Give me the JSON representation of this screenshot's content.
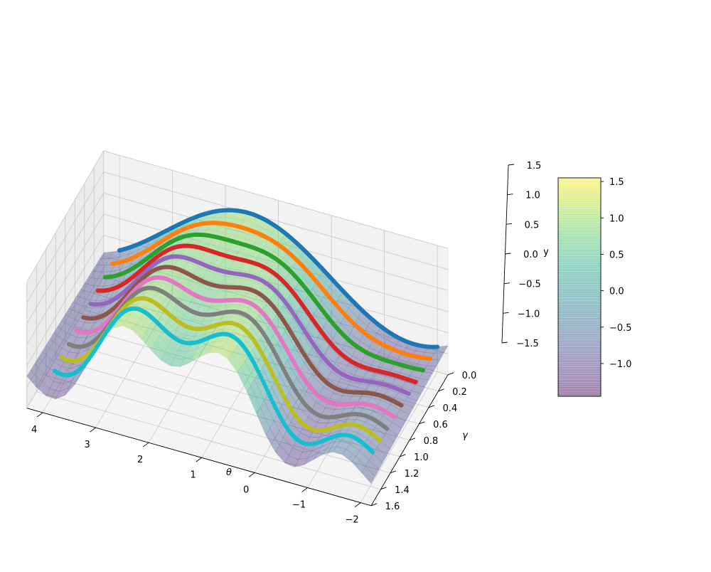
{
  "chart_data": {
    "type": "surface3d",
    "title": "",
    "xlabel": "θ",
    "ylabel": "γ",
    "zlabel": "y",
    "xlim": [
      -2.2,
      4.3
    ],
    "ylim": [
      0.0,
      1.6
    ],
    "zlim": [
      -1.5,
      1.5
    ],
    "x_ticks": [
      "4",
      "3",
      "2",
      "1",
      "0",
      "−1",
      "−2"
    ],
    "x_tick_values": [
      4,
      3,
      2,
      1,
      0,
      -1,
      -2
    ],
    "y_ticks": [
      "0.0",
      "0.2",
      "0.4",
      "0.6",
      "0.8",
      "1.0",
      "1.2",
      "1.4",
      "1.6"
    ],
    "y_tick_values": [
      0.0,
      0.2,
      0.4,
      0.6,
      0.8,
      1.0,
      1.2,
      1.4,
      1.6
    ],
    "z_ticks": [
      "1.5",
      "1.0",
      "0.5",
      "0.0",
      "−0.5",
      "−1.0",
      "−1.5"
    ],
    "z_tick_values": [
      1.5,
      1.0,
      0.5,
      0.0,
      -0.5,
      -1.0,
      -1.5
    ],
    "surface_function": "y = sin(θ) + γ·sin(3θ)/3",
    "surface_opacity": 0.4,
    "grid": true,
    "series": [
      {
        "gamma": 0.0,
        "color": "#1f77b4",
        "x_range": [
          -2,
          4
        ]
      },
      {
        "gamma": 0.15,
        "color": "#ff7f0e",
        "x_range": [
          -2,
          4
        ]
      },
      {
        "gamma": 0.3,
        "color": "#2ca02c",
        "x_range": [
          -2,
          4
        ]
      },
      {
        "gamma": 0.45,
        "color": "#d62728",
        "x_range": [
          -2,
          4
        ]
      },
      {
        "gamma": 0.6,
        "color": "#9467bd",
        "x_range": [
          -2,
          4
        ]
      },
      {
        "gamma": 0.75,
        "color": "#8c564b",
        "x_range": [
          -2,
          4
        ]
      },
      {
        "gamma": 0.9,
        "color": "#e377c2",
        "x_range": [
          -2,
          4
        ]
      },
      {
        "gamma": 1.05,
        "color": "#7f7f7f",
        "x_range": [
          -2,
          4
        ]
      },
      {
        "gamma": 1.2,
        "color": "#bcbd22",
        "x_range": [
          -2,
          4
        ]
      },
      {
        "gamma": 1.35,
        "color": "#17becf",
        "x_range": [
          -2,
          4
        ]
      }
    ],
    "colorbar": {
      "colormap": "viridis",
      "range": [
        -1.45,
        1.55
      ],
      "ticks": [
        "1.5",
        "1.0",
        "0.5",
        "0.0",
        "−0.5",
        "−1.0"
      ],
      "tick_values": [
        1.5,
        1.0,
        0.5,
        0.0,
        -0.5,
        -1.0
      ]
    }
  }
}
